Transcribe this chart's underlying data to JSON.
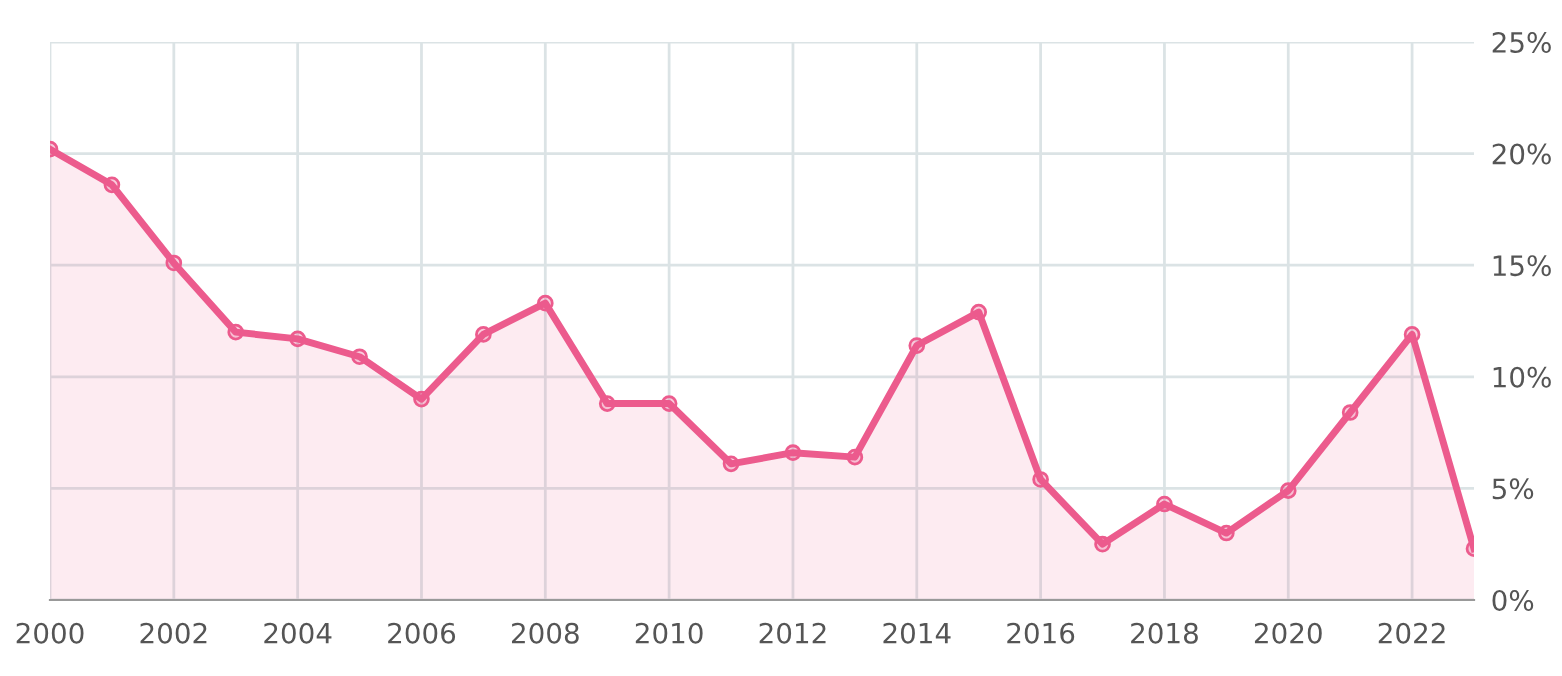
{
  "chart_data": {
    "type": "area",
    "x": [
      2000,
      2001,
      2002,
      2003,
      2004,
      2005,
      2006,
      2007,
      2008,
      2009,
      2010,
      2011,
      2012,
      2013,
      2014,
      2015,
      2016,
      2017,
      2018,
      2019,
      2020,
      2021,
      2022,
      2023
    ],
    "series": [
      {
        "color": "#ec5b8d",
        "values": [
          20.2,
          18.6,
          15.1,
          12.0,
          11.7,
          10.9,
          9.0,
          11.9,
          13.3,
          8.8,
          8.8,
          6.1,
          6.6,
          6.4,
          11.4,
          12.9,
          5.4,
          2.5,
          4.3,
          3.0,
          4.9,
          8.4,
          11.9,
          2.3
        ]
      }
    ],
    "xlim": [
      2000,
      2023
    ],
    "xticks": [
      2000,
      2002,
      2004,
      2006,
      2008,
      2010,
      2012,
      2014,
      2016,
      2018,
      2020,
      2022
    ],
    "ylim": [
      0,
      25
    ],
    "yticks": [
      {
        "value": 0,
        "label": "0%"
      },
      {
        "value": 5,
        "label": "5%"
      },
      {
        "value": 10,
        "label": "10%"
      },
      {
        "value": 15,
        "label": "15%"
      },
      {
        "value": 20,
        "label": "20%"
      },
      {
        "value": 25,
        "label": "25%"
      }
    ],
    "grid": true,
    "marker": "circle",
    "line_style": "solid"
  }
}
